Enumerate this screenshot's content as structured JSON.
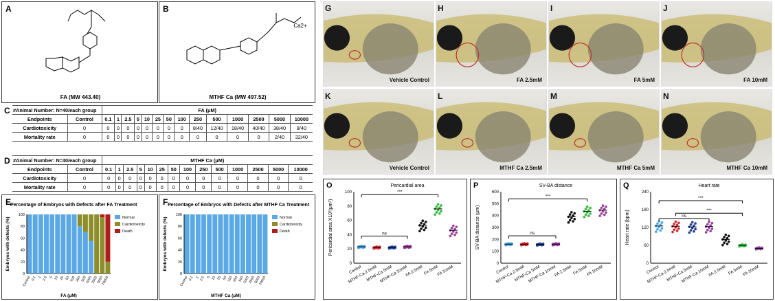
{
  "panels": {
    "A": {
      "label": "A",
      "caption": "FA (MW 443.40)"
    },
    "B": {
      "label": "B",
      "caption": "MTHF Ca (MW 497.52)",
      "ion": "Ca2+"
    },
    "C": {
      "label": "C",
      "group": "#Animal Number: N=40/each group",
      "compound": "FA (μM)"
    },
    "D": {
      "label": "D",
      "group": "#Animal Number: N=40/each group",
      "compound": "MTHF Ca (μM)"
    },
    "E": {
      "label": "E"
    },
    "F": {
      "label": "F"
    },
    "G": {
      "label": "G",
      "caption": "Vehicle Control"
    },
    "H": {
      "label": "H",
      "caption": "FA 2.5mM"
    },
    "I": {
      "label": "I",
      "caption": "FA 5mM"
    },
    "J": {
      "label": "J",
      "caption": "FA 10mM"
    },
    "K": {
      "label": "K",
      "caption": "Vehicle Control"
    },
    "L": {
      "label": "L",
      "caption": "MTHF Ca  2.5mM"
    },
    "M": {
      "label": "M",
      "caption": "MTHF Ca  5mM"
    },
    "N": {
      "label": "N",
      "caption": "MTHF Ca  10mM"
    },
    "O": {
      "label": "O"
    },
    "P": {
      "label": "P"
    },
    "Q": {
      "label": "Q"
    }
  },
  "tables": {
    "columns": [
      "Endpoints",
      "Control",
      "0.1",
      "1",
      "2.5",
      "5",
      "10",
      "25",
      "50",
      "100",
      "250",
      "500",
      "1000",
      "2500",
      "5000",
      "10000"
    ],
    "fa_rows": [
      [
        "Cardiotoxicity",
        "0",
        "0",
        "0",
        "0",
        "0",
        "0",
        "0",
        "0",
        "0",
        "8/40",
        "12/40",
        "18/40",
        "40/40",
        "38/40",
        "8/40"
      ],
      [
        "Mortality rate",
        "0",
        "0",
        "0",
        "0",
        "0",
        "0",
        "0",
        "0",
        "0",
        "0",
        "0",
        "0",
        "0",
        "2/40",
        "32/40"
      ]
    ],
    "mthf_rows": [
      [
        "Cardiotoxicity",
        "0",
        "0",
        "0",
        "0",
        "0",
        "0",
        "0",
        "0",
        "0",
        "0",
        "0",
        "0",
        "0",
        "0",
        "0"
      ],
      [
        "Mortality rate",
        "0",
        "0",
        "0",
        "0",
        "0",
        "0",
        "0",
        "0",
        "0",
        "0",
        "0",
        "0",
        "0",
        "0",
        "0"
      ]
    ]
  },
  "colors": {
    "normal": "#5aa9e6",
    "cardio": "#8d8d2a",
    "death": "#b01c1c",
    "control": "#4aa8e8",
    "mthf": "#d9262b",
    "mthf5": "#1f3f99",
    "mthf10": "#9b3fa0",
    "fa25": "#111111",
    "fa5": "#2fbf3a",
    "fa10": "#9b3fa0"
  },
  "chart_data": [
    {
      "type": "bar",
      "stacked": true,
      "title": "Percentage of Embryos with Defects after FA Treatment",
      "xlabel": "FA  (μM)",
      "ylabel": "Embryos with defects (%)",
      "ylim": [
        0,
        100
      ],
      "yticks": [
        "0",
        "20",
        "40",
        "60",
        "80",
        "100"
      ],
      "categories": [
        "Control",
        "0.1",
        "1",
        "2.5",
        "5",
        "10",
        "25",
        "50",
        "100",
        "250",
        "500",
        "1000",
        "2500",
        "5000",
        "10000"
      ],
      "series": [
        {
          "name": "Normal",
          "values": [
            100,
            100,
            100,
            100,
            100,
            100,
            100,
            100,
            100,
            80,
            70,
            55,
            0,
            0,
            0
          ]
        },
        {
          "name": "Cardiotoxicity",
          "values": [
            0,
            0,
            0,
            0,
            0,
            0,
            0,
            0,
            0,
            20,
            30,
            45,
            100,
            95,
            20
          ]
        },
        {
          "name": "Death",
          "values": [
            0,
            0,
            0,
            0,
            0,
            0,
            0,
            0,
            0,
            0,
            0,
            0,
            0,
            5,
            80
          ]
        }
      ],
      "legend": "top-right"
    },
    {
      "type": "bar",
      "stacked": true,
      "title": "Percentage of Embryos with Defects after MTHF Ca Treatment",
      "xlabel": "MTHF Ca  (μM)",
      "ylabel": "Embryos with defects (%)",
      "ylim": [
        0,
        100
      ],
      "yticks": [
        "0",
        "20",
        "40",
        "60",
        "80",
        "100"
      ],
      "categories": [
        "Control",
        "0.1",
        "1",
        "2.5",
        "5",
        "10",
        "25",
        "50",
        "100",
        "250",
        "500",
        "1000",
        "2500",
        "5000",
        "10000"
      ],
      "series": [
        {
          "name": "Normal",
          "values": [
            100,
            100,
            100,
            100,
            100,
            100,
            100,
            100,
            100,
            100,
            100,
            100,
            100,
            100,
            100
          ]
        },
        {
          "name": "Cardiotoxicity",
          "values": [
            0,
            0,
            0,
            0,
            0,
            0,
            0,
            0,
            0,
            0,
            0,
            0,
            0,
            0,
            0
          ]
        },
        {
          "name": "Death",
          "values": [
            0,
            0,
            0,
            0,
            0,
            0,
            0,
            0,
            0,
            0,
            0,
            0,
            0,
            0,
            0
          ]
        }
      ],
      "legend": "top-right"
    },
    {
      "type": "scatter",
      "title": "Pericardial area",
      "ylabel": "Pericardial area X10³(μm²)",
      "ylim": [
        0,
        100
      ],
      "yticks": [
        "0",
        "20",
        "40",
        "60",
        "80",
        "100"
      ],
      "categories": [
        "Control",
        "MTHF-Ca 2.5mM",
        "MTHF-Ca 5mM",
        "MTHF-Ca 10mM",
        "FA 2.5mM",
        "FA 5mM",
        "FA 10mM"
      ],
      "means": [
        23,
        22,
        22,
        23,
        53,
        76,
        46
      ],
      "annotations": [
        "ns",
        "***"
      ]
    },
    {
      "type": "scatter",
      "title": "SV-BA distance",
      "ylabel": "SV-BA distance (μm)",
      "ylim": [
        0,
        600
      ],
      "yticks": [
        "0",
        "100",
        "200",
        "300",
        "400",
        "500",
        "600"
      ],
      "categories": [
        "Control",
        "MTHF-Ca 2.5mM",
        "MTHF-Ca 5mM",
        "MTHF-Ca 10mM",
        "FA 2.5mM",
        "FA 5mM",
        "FA 10mM"
      ],
      "means": [
        160,
        160,
        158,
        160,
        390,
        435,
        445
      ],
      "annotations": [
        "ns",
        "***"
      ]
    },
    {
      "type": "scatter",
      "title": "Heart rate",
      "ylabel": "Heart rate (bpm)",
      "ylim": [
        0,
        240
      ],
      "yticks": [
        "0",
        "60",
        "120",
        "180",
        "240"
      ],
      "categories": [
        "Control",
        "MTHF-Ca 2.5mM",
        "MTHF-Ca 5mM",
        "MTHF-Ca 10mM",
        "FA 2.5mM",
        "FA 5mM",
        "FA 10mM"
      ],
      "means": [
        125,
        124,
        122,
        123,
        80,
        60,
        50
      ],
      "annotations": [
        "ns",
        "***",
        "***"
      ]
    }
  ]
}
